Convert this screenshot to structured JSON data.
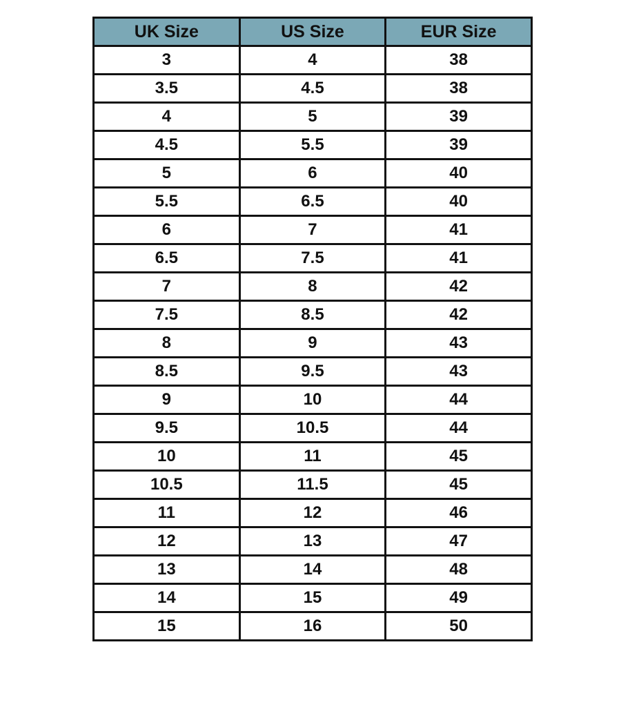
{
  "table": {
    "header": [
      "UK Size",
      "US Size",
      "EUR Size"
    ],
    "rows": [
      [
        "3",
        "4",
        "38"
      ],
      [
        "3.5",
        "4.5",
        "38"
      ],
      [
        "4",
        "5",
        "39"
      ],
      [
        "4.5",
        "5.5",
        "39"
      ],
      [
        "5",
        "6",
        "40"
      ],
      [
        "5.5",
        "6.5",
        "40"
      ],
      [
        "6",
        "7",
        "41"
      ],
      [
        "6.5",
        "7.5",
        "41"
      ],
      [
        "7",
        "8",
        "42"
      ],
      [
        "7.5",
        "8.5",
        "42"
      ],
      [
        "8",
        "9",
        "43"
      ],
      [
        "8.5",
        "9.5",
        "43"
      ],
      [
        "9",
        "10",
        "44"
      ],
      [
        "9.5",
        "10.5",
        "44"
      ],
      [
        "10",
        "11",
        "45"
      ],
      [
        "10.5",
        "11.5",
        "45"
      ],
      [
        "11",
        "12",
        "46"
      ],
      [
        "12",
        "13",
        "47"
      ],
      [
        "13",
        "14",
        "48"
      ],
      [
        "14",
        "15",
        "49"
      ],
      [
        "15",
        "16",
        "50"
      ]
    ]
  }
}
